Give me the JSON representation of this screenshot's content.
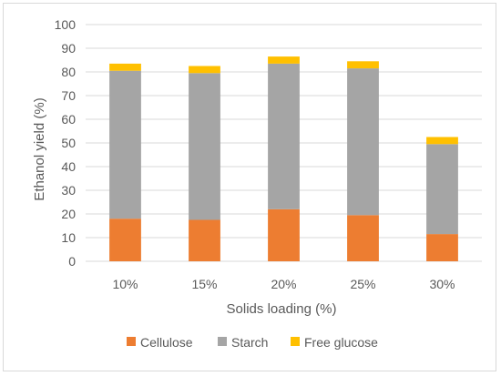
{
  "chart_data": {
    "type": "bar",
    "stacked": true,
    "title": "",
    "xlabel": "Solids loading (%)",
    "ylabel": "Ethanol yield (%)",
    "ylim": [
      0,
      100
    ],
    "yticks": [
      0,
      10,
      20,
      30,
      40,
      50,
      60,
      70,
      80,
      90,
      100
    ],
    "categories": [
      "10%",
      "15%",
      "20%",
      "25%",
      "30%"
    ],
    "series": [
      {
        "name": "Cellulose",
        "color": "#ed7d31",
        "values": [
          18,
          17.5,
          22,
          19.5,
          11.5
        ]
      },
      {
        "name": "Starch",
        "color": "#a5a5a5",
        "values": [
          62.5,
          62,
          61.5,
          62,
          38
        ]
      },
      {
        "name": "Free glucose",
        "color": "#ffc000",
        "values": [
          3,
          3,
          3,
          3,
          3
        ]
      }
    ],
    "grid": true,
    "legend": "bottom"
  }
}
